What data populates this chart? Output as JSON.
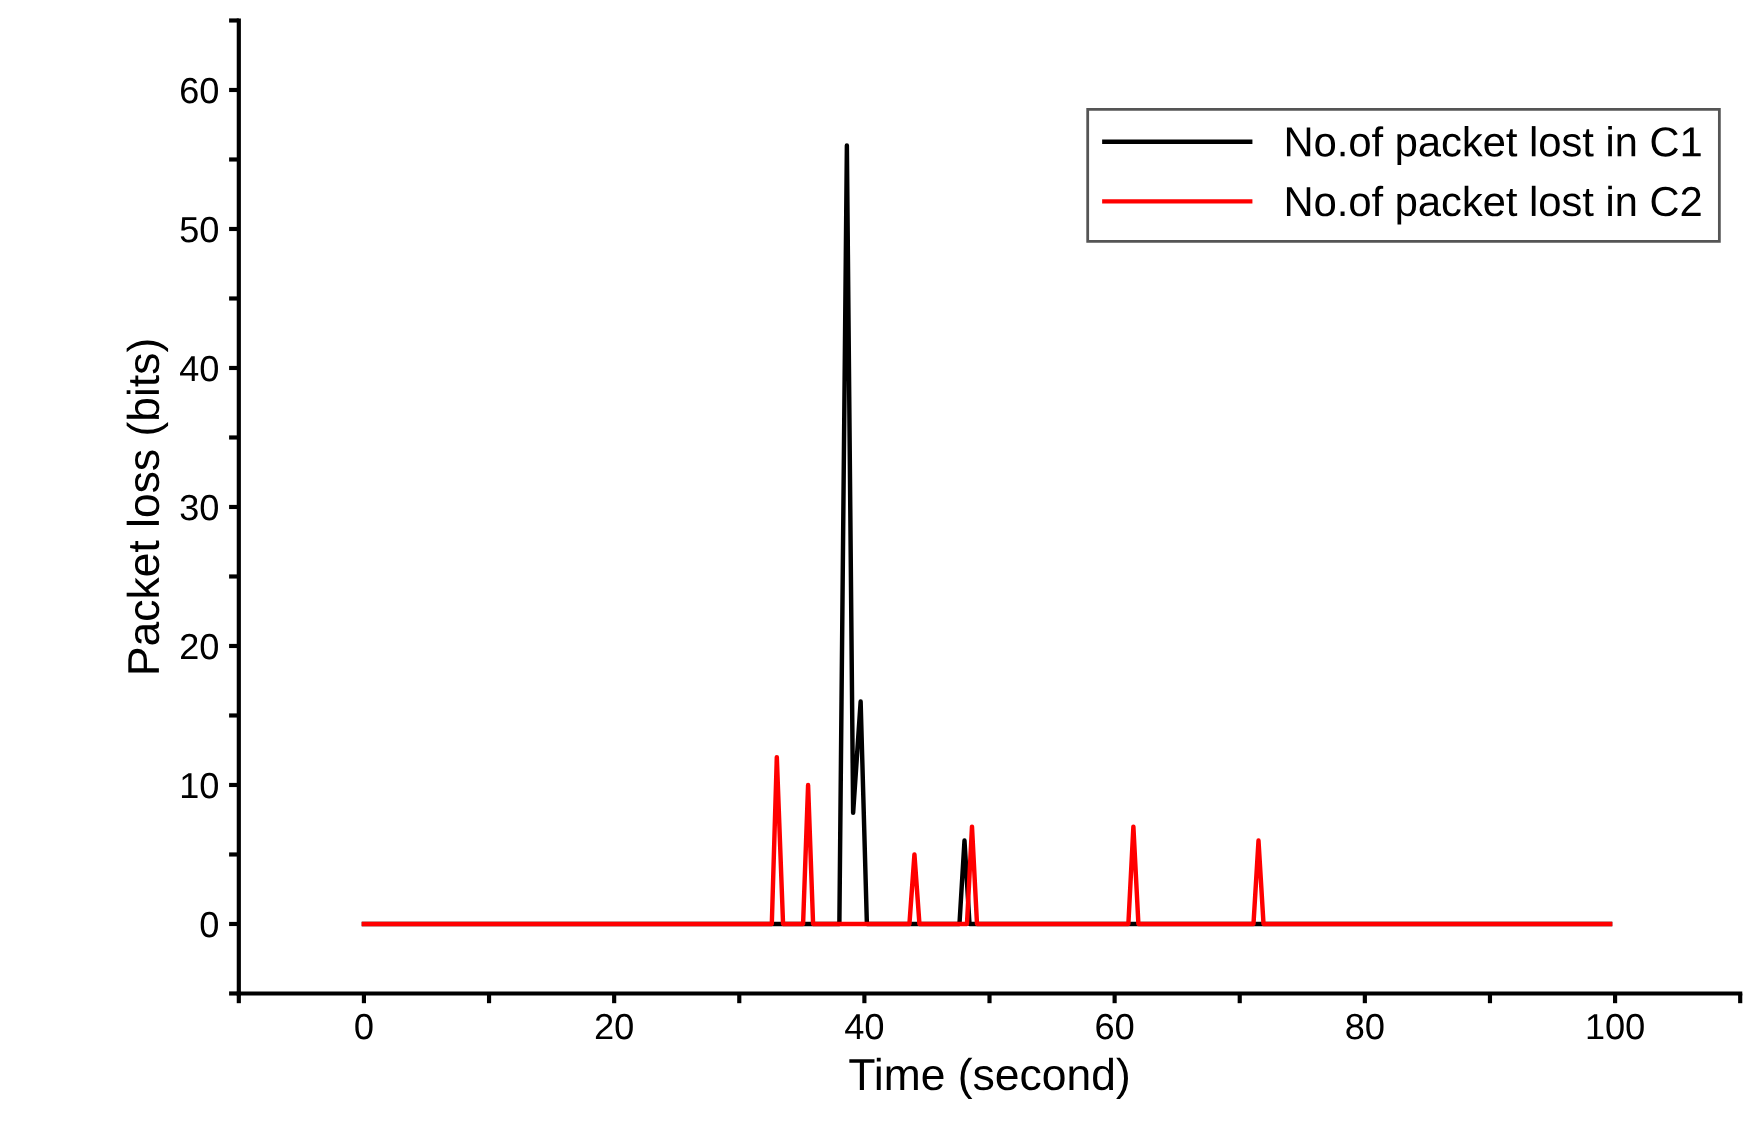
{
  "chart_data": {
    "type": "line",
    "xlabel": "Time (second)",
    "ylabel": "Packet loss (bits)",
    "xlim": [
      -10,
      110
    ],
    "ylim": [
      -5,
      65
    ],
    "xticks": [
      {
        "value": -10,
        "label": null
      },
      0,
      {
        "value": 10,
        "label": null
      },
      20,
      {
        "value": 30,
        "label": null
      },
      40,
      {
        "value": 50,
        "label": null
      },
      60,
      {
        "value": 70,
        "label": null
      },
      80,
      {
        "value": 90,
        "label": null
      },
      100,
      {
        "value": 110,
        "label": null
      }
    ],
    "yticks": [
      {
        "value": -5,
        "label": null
      },
      0,
      {
        "value": 5,
        "label": null
      },
      10,
      {
        "value": 15,
        "label": null
      },
      20,
      {
        "value": 25,
        "label": null
      },
      30,
      {
        "value": 35,
        "label": null
      },
      40,
      {
        "value": 45,
        "label": null
      },
      50,
      {
        "value": 55,
        "label": null
      },
      60,
      {
        "value": 65,
        "label": null
      }
    ],
    "grid": false,
    "legend": "top right",
    "marker": "none",
    "line_style": "solid",
    "series": [
      {
        "name": "No.of packet lost in C1",
        "color": "#000000",
        "x": [
          0,
          38.0,
          38.6,
          39.1,
          39.7,
          40.2,
          47.6,
          48.0,
          48.4,
          99.6
        ],
        "values": [
          0,
          0,
          56,
          8,
          16,
          0,
          0,
          6,
          0,
          0
        ]
      },
      {
        "name": "No.of packet lost in C2",
        "color": "#ff0000",
        "x": [
          0,
          32.6,
          33.0,
          33.5,
          35.1,
          35.5,
          35.9,
          43.6,
          44.0,
          44.4,
          48.2,
          48.6,
          49.0,
          61.1,
          61.5,
          61.9,
          71.1,
          71.5,
          71.9,
          99.6
        ],
        "values": [
          0,
          0,
          12,
          0,
          0,
          10,
          0,
          0,
          5,
          0,
          0,
          7,
          0,
          0,
          7,
          0,
          0,
          6,
          0,
          0
        ]
      }
    ]
  }
}
